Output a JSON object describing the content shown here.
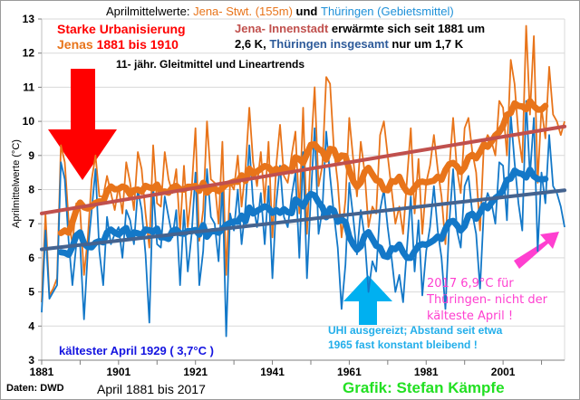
{
  "chart_data": {
    "type": "line",
    "title_parts": {
      "prefix": "Aprilmittelwerte:",
      "jena": "Jena- Stwt. (155m)",
      "und": "und",
      "thueringen": "Thüringen (Gebietsmittel)"
    },
    "ylabel": "Aprilmittelwerte (°C)",
    "xlabel": "April 1881 bis 2017",
    "xlim": [
      1881,
      2017
    ],
    "ylim": [
      3,
      13
    ],
    "x_ticks": [
      "1881",
      "1901",
      "1921",
      "1941",
      "1961",
      "1981",
      "2001"
    ],
    "y_ticks": [
      "3",
      "4",
      "5",
      "6",
      "7",
      "8",
      "9",
      "10",
      "11",
      "12",
      "13"
    ],
    "grid": true,
    "colors": {
      "jena": "#E8741A",
      "thueringen": "#1378C8",
      "jena_trend": "#C0504D",
      "thueringen_trend": "#44638F",
      "red_arrow": "#FF0000",
      "cyan_arrow": "#00B0F0",
      "magenta_arrow": "#FF3FD0"
    },
    "series": [
      {
        "name": "Jena- Stwt. (155m)",
        "start_year": 1881,
        "values": [
          4.7,
          7.3,
          4.9,
          5.1,
          5.4,
          9.3,
          8.8,
          7.1,
          6.4,
          7.6,
          7.4,
          5.5,
          6.6,
          8.3,
          9.0,
          7.8,
          7.8,
          8.4,
          7.9,
          7.4,
          8.1,
          7.3,
          8.8,
          8.2,
          7.4,
          9.1,
          8.6,
          7.3,
          6.3,
          9.3,
          7.6,
          7.5,
          9.1,
          8.3,
          7.9,
          8.6,
          6.8,
          8.7,
          6.9,
          8.0,
          9.8,
          6.5,
          7.4,
          10.0,
          8.3,
          8.2,
          7.0,
          9.4,
          5.5,
          8.2,
          8.0,
          9.0,
          7.5,
          8.6,
          10.4,
          8.8,
          8.1,
          9.1,
          7.6,
          9.4,
          6.6,
          8.7,
          9.9,
          8.4,
          8.2,
          9.0,
          9.7,
          7.3,
          10.4,
          6.7,
          9.1,
          11.0,
          8.1,
          8.7,
          11.3,
          11.1,
          9.2,
          8.2,
          6.6,
          7.7,
          10.1,
          8.9,
          7.8,
          9.4,
          8.5,
          6.9,
          7.5,
          7.3,
          9.6,
          10.0,
          9.0,
          8.0,
          7.0,
          7.5,
          6.7,
          8.3,
          9.8,
          7.3,
          8.9,
          6.7,
          8.2,
          8.7,
          9.6,
          8.6,
          7.8,
          6.4,
          8.6,
          10.1,
          8.6,
          7.9,
          9.8,
          10.1,
          9.1,
          8.5,
          6.8,
          9.3,
          9.6,
          9.4,
          9.0,
          10.6,
          10.4,
          9.0,
          11.8,
          11.1,
          9.6,
          8.8,
          12.8,
          10.2,
          12.5,
          8.2,
          10.4,
          9.5,
          11.6,
          10.2,
          10.0,
          9.6,
          10.0
        ],
        "moving_average_11yr": true
      },
      {
        "name": "Thüringen (Gebietsmittel)",
        "start_year": 1881,
        "values": [
          4.4,
          6.8,
          4.8,
          5.0,
          5.2,
          8.8,
          8.3,
          6.5,
          5.2,
          6.4,
          6.4,
          4.2,
          6.2,
          7.4,
          8.6,
          6.2,
          5.2,
          7.2,
          6.4,
          6.7,
          6.9,
          6.0,
          7.4,
          7.1,
          6.4,
          8.0,
          7.4,
          6.1,
          4.1,
          8.1,
          6.4,
          6.3,
          7.8,
          7.2,
          6.6,
          7.4,
          5.2,
          7.4,
          5.6,
          6.7,
          8.5,
          5.2,
          6.2,
          8.6,
          7.2,
          7.0,
          5.9,
          8.2,
          3.7,
          7.3,
          6.8,
          8.0,
          6.4,
          7.5,
          9.3,
          7.6,
          6.9,
          7.9,
          6.4,
          8.1,
          5.4,
          7.6,
          8.7,
          7.2,
          6.9,
          7.8,
          8.5,
          6.0,
          9.1,
          5.4,
          7.8,
          9.8,
          6.7,
          7.4,
          9.7,
          8.4,
          7.3,
          6.3,
          4.5,
          5.8,
          8.2,
          7.2,
          6.1,
          7.4,
          6.6,
          5.0,
          5.9,
          5.6,
          7.4,
          8.0,
          6.9,
          6.0,
          5.0,
          5.5,
          4.7,
          6.3,
          7.8,
          5.6,
          7.1,
          4.9,
          6.2,
          6.9,
          8.1,
          6.8,
          6.0,
          4.5,
          7.0,
          8.6,
          6.8,
          6.3,
          8.1,
          8.4,
          7.3,
          6.7,
          5.1,
          7.4,
          7.9,
          7.6,
          7.0,
          8.8,
          8.7,
          7.1,
          10.2,
          8.8,
          7.6,
          6.8,
          10.6,
          8.4,
          10.1,
          6.2,
          8.5,
          7.6,
          9.6,
          8.1,
          7.9,
          7.5,
          6.9
        ],
        "moving_average_11yr": true
      }
    ],
    "trends": [
      {
        "name": "Jena Lineartrend",
        "start": 7.3,
        "end": 9.85
      },
      {
        "name": "Thüringen Lineartrend",
        "start": 6.25,
        "end": 7.98
      }
    ],
    "annotations": {
      "urban_line1": "Starke Urbanisierung",
      "urban_line2_a": "Jenas",
      "urban_line2_b": "1881 bis 1910",
      "warm_line1_a": "Jena- Innenstadt",
      "warm_line1_b": "erwärmte sich seit 1881 um",
      "warm_line2_a": "2,6 K,",
      "warm_line2_b": "Thüringen insgesamt",
      "warm_line2_c": "nur um 1,7 K",
      "smoothing_note": "11- jähr. Gleitmittel und Lineartrends",
      "coldest": "kältester April 1929 ( 3,7°C )",
      "uhi_line1": "UHI ausgereizt; Abstand seit etwa",
      "uhi_line2": "1965 fast konstant bleibend !",
      "y2017_line1": "2017  6,9°C für",
      "y2017_line2": "Thüringen- nicht der",
      "y2017_line3": "kälteste April !"
    },
    "source": "Daten: DWD",
    "credit": "Grafik: Stefan Kämpfe"
  }
}
